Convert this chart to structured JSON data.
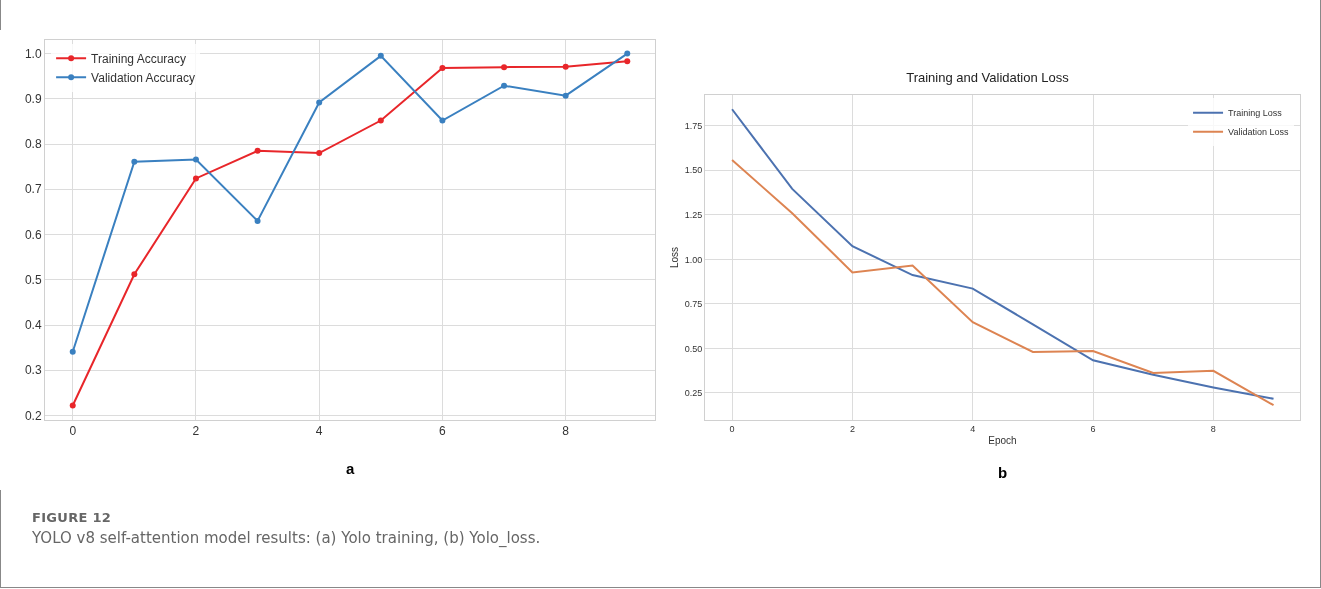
{
  "chart_data": [
    {
      "type": "line",
      "x": [
        0,
        1,
        2,
        3,
        4,
        5,
        6,
        7,
        8,
        9
      ],
      "series": [
        {
          "name": "Training Accuracy",
          "color": "#e8262a",
          "values": [
            0.222,
            0.512,
            0.724,
            0.785,
            0.78,
            0.852,
            0.968,
            0.97,
            0.971,
            0.983
          ]
        },
        {
          "name": "Validation Accuracy",
          "color": "#3a80c0",
          "values": [
            0.341,
            0.761,
            0.766,
            0.63,
            0.892,
            0.995,
            0.852,
            0.929,
            0.907,
            1.0
          ]
        }
      ],
      "xlim": [
        -0.45,
        9.45
      ],
      "xticks": [
        0,
        2,
        4,
        6,
        8
      ],
      "ylim": [
        0.19,
        1.03
      ],
      "yticks": [
        0.2,
        0.3,
        0.4,
        0.5,
        0.6,
        0.7,
        0.8,
        0.9,
        {
          "value": 1.0,
          "label": "1.0"
        }
      ],
      "grid": true,
      "legend": "top left",
      "marker": "circle",
      "line_style": "solid",
      "annotations": [
        "a",
        "FIGURE 12",
        "YOLO v8 self-attention model results: (a) Yolo training, (b) Yolo_loss."
      ]
    },
    {
      "type": "line",
      "title": "Training and Validation Loss",
      "xlabel": "Epoch",
      "ylabel": "Loss",
      "x": [
        0,
        1,
        2,
        3,
        4,
        5,
        6,
        7,
        8,
        9
      ],
      "series": [
        {
          "name": "Training Loss",
          "color": "#4c72b0",
          "values": [
            1.843,
            1.396,
            1.074,
            0.912,
            0.836,
            0.635,
            0.433,
            0.352,
            0.281,
            0.217
          ]
        },
        {
          "name": "Validation Loss",
          "color": "#dd8452",
          "values": [
            1.558,
            1.259,
            0.927,
            0.965,
            0.647,
            0.48,
            0.485,
            0.362,
            0.374,
            0.181
          ]
        }
      ],
      "xlim": [
        -0.45,
        9.44
      ],
      "xticks": [
        0,
        2,
        4,
        6,
        8
      ],
      "ylim": [
        0.098,
        1.923
      ],
      "yticks": [
        {
          "value": 0.25,
          "label": "0.25"
        },
        {
          "value": 0.5,
          "label": "0.50"
        },
        {
          "value": 0.75,
          "label": "0.75"
        },
        {
          "value": 1.0,
          "label": "1.00"
        },
        {
          "value": 1.25,
          "label": "1.25"
        },
        {
          "value": 1.5,
          "label": "1.50"
        },
        {
          "value": 1.75,
          "label": "1.75"
        }
      ],
      "grid": true,
      "legend": "top right",
      "line_style": "solid",
      "annotations": [
        "b"
      ]
    }
  ]
}
